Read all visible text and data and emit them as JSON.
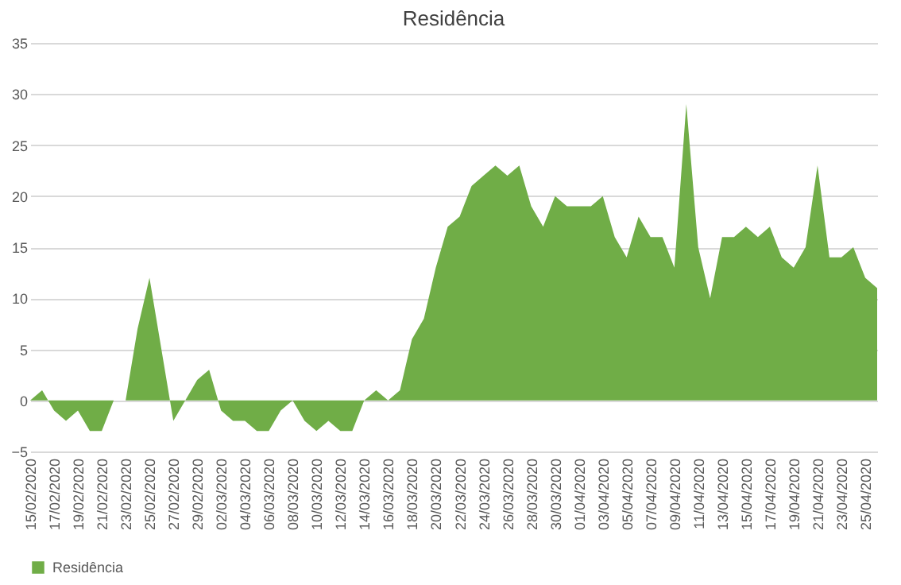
{
  "chart_data": {
    "type": "area",
    "title": "Residência",
    "categories": [
      "15/02/2020",
      null,
      "17/02/2020",
      null,
      "19/02/2020",
      null,
      "21/02/2020",
      null,
      "23/02/2020",
      null,
      "25/02/2020",
      null,
      "27/02/2020",
      null,
      "29/02/2020",
      null,
      "02/03/2020",
      null,
      "04/03/2020",
      null,
      "06/03/2020",
      null,
      "08/03/2020",
      null,
      "10/03/2020",
      null,
      "12/03/2020",
      null,
      "14/03/2020",
      null,
      "16/03/2020",
      null,
      "18/03/2020",
      null,
      "20/03/2020",
      null,
      "22/03/2020",
      null,
      "24/03/2020",
      null,
      "26/03/2020",
      null,
      "28/03/2020",
      null,
      "30/03/2020",
      null,
      "01/04/2020",
      null,
      "03/04/2020",
      null,
      "05/04/2020",
      null,
      "07/04/2020",
      null,
      "09/04/2020",
      null,
      "11/04/2020",
      null,
      "13/04/2020",
      null,
      "15/04/2020",
      null,
      "17/04/2020",
      null,
      "19/04/2020",
      null,
      "21/04/2020",
      null,
      "23/04/2020",
      null,
      "25/04/2020",
      null
    ],
    "series": [
      {
        "name": "Residência",
        "color": "#70ad47",
        "values": [
          0,
          1,
          -1,
          -2,
          -1,
          -3,
          -3,
          0,
          0,
          7,
          12,
          5,
          -2,
          0,
          2,
          3,
          -1,
          -2,
          -2,
          -3,
          -3,
          -1,
          0,
          -2,
          -3,
          -2,
          -3,
          -3,
          0,
          1,
          0,
          1,
          6,
          8,
          13,
          17,
          18,
          21,
          22,
          23,
          22,
          23,
          19,
          17,
          20,
          19,
          19,
          19,
          20,
          16,
          14,
          18,
          16,
          16,
          13,
          29,
          15,
          10,
          16,
          16,
          17,
          16,
          17,
          14,
          13,
          15,
          23,
          14,
          14,
          15,
          12,
          11
        ]
      }
    ],
    "ylim": [
      -5,
      35
    ],
    "yticks": [
      -5,
      0,
      5,
      10,
      15,
      20,
      25,
      30,
      35
    ],
    "grid": "y",
    "legend": "bottom"
  }
}
